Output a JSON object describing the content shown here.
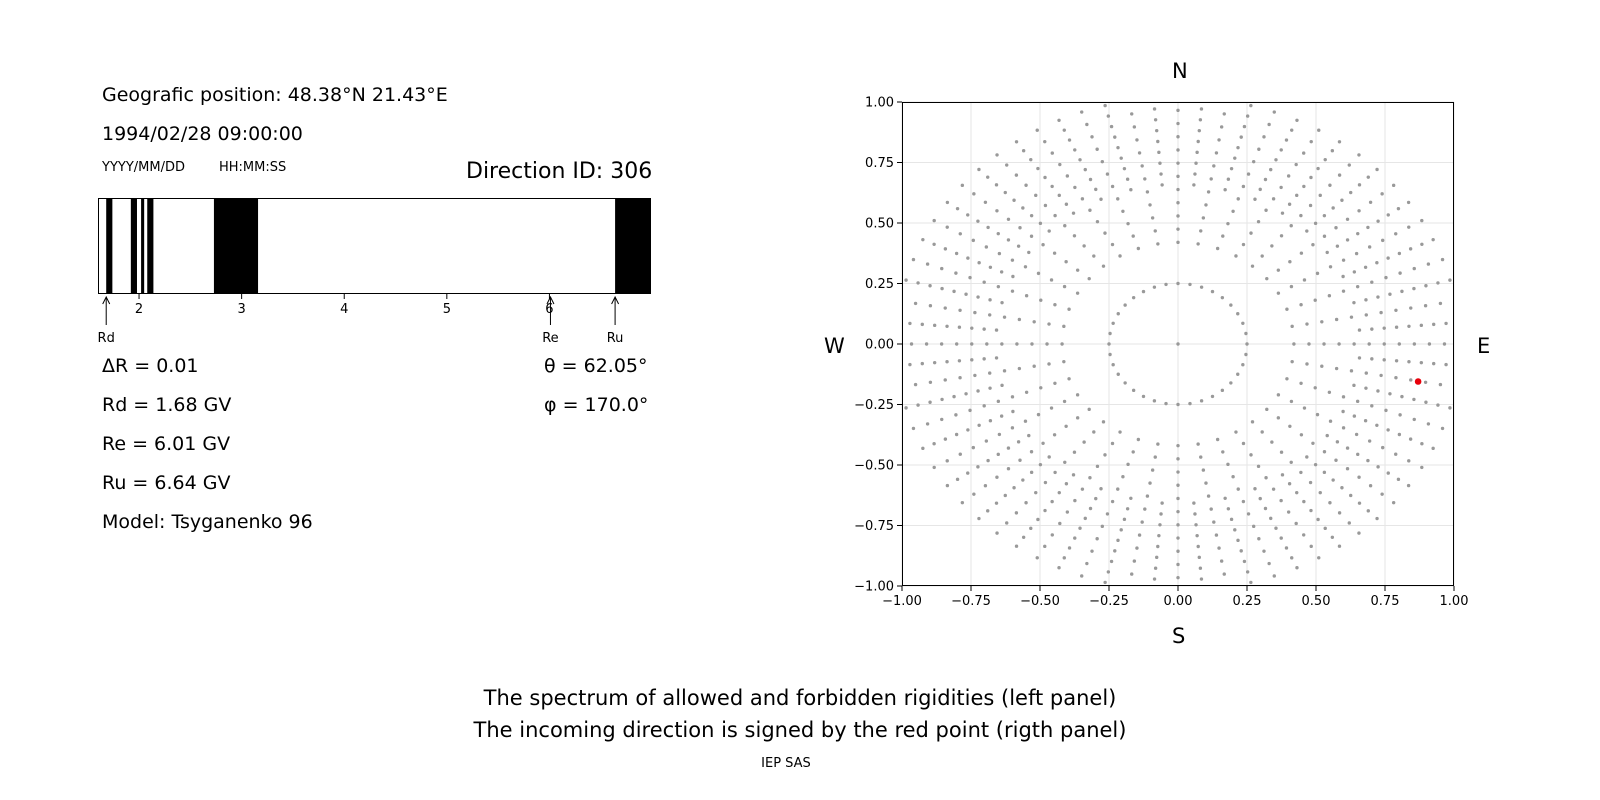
{
  "left_panel": {
    "geo_position": "Geografic position: 48.38°N 21.43°E",
    "datetime": "1994/02/28 09:00:00",
    "date_format": "YYYY/MM/DD",
    "time_format": "HH:MM:SS",
    "direction_id": "Direction ID: 306",
    "delta_r": "ΔR = 0.01",
    "rd": "Rd = 1.68 GV",
    "re": "Re = 6.01 GV",
    "ru": "Ru = 6.64 GV",
    "model": "Model: Tsyganenko 96",
    "theta": "θ = 62.05°",
    "phi": "φ = 170.0°"
  },
  "footer": {
    "line1": "The spectrum of allowed and forbidden rigidities (left panel)",
    "line2": "The incoming direction is signed by the red point (rigth panel)",
    "credit": "IEP SAS"
  },
  "chart_data": [
    {
      "type": "bar",
      "name": "rigidity-spectrum",
      "xlim": [
        1.6,
        6.99
      ],
      "xticks": [
        2,
        3,
        4,
        5,
        6
      ],
      "forbidden_bands": [
        [
          1.68,
          1.74
        ],
        [
          1.92,
          1.98
        ],
        [
          2.02,
          2.05
        ],
        [
          2.08,
          2.14
        ],
        [
          2.73,
          3.16
        ],
        [
          6.64,
          6.99
        ]
      ],
      "markers": [
        {
          "label": "Rd",
          "value": 1.68
        },
        {
          "label": "Re",
          "value": 6.01
        },
        {
          "label": "Ru",
          "value": 6.64
        }
      ]
    },
    {
      "type": "scatter",
      "name": "incoming-direction",
      "xlim": [
        -1.0,
        1.0
      ],
      "ylim": [
        -1.0,
        1.0
      ],
      "xticks": [
        "−1.00",
        "−0.75",
        "−0.50",
        "−0.25",
        "0.00",
        "0.25",
        "0.50",
        "0.75",
        "1.00"
      ],
      "yticks": [
        "1.00",
        "0.75",
        "0.50",
        "0.25",
        "0.00",
        "−0.25",
        "−0.50",
        "−0.75",
        "−1.00"
      ],
      "grid": true,
      "compass": {
        "north": "N",
        "south": "S",
        "east": "E",
        "west": "W"
      },
      "point_color": "#999999",
      "highlight_color": "#e8000b",
      "rings": [
        {
          "r_start": 0.0,
          "r_end": 0.0,
          "n_points": 1,
          "directions": 1
        },
        {
          "r_start": 0.25,
          "r_end": 0.25,
          "n_points": 1,
          "directions": 36
        },
        {
          "r_start": 0.42,
          "r_end": 1.02,
          "n_points": 12,
          "directions": 36
        },
        {
          "r_start": 0.66,
          "r_end": 1.02,
          "n_points": 9,
          "directions": 36,
          "offset_deg": 5
        }
      ],
      "highlight": {
        "x": 0.87,
        "y": -0.155
      }
    }
  ]
}
